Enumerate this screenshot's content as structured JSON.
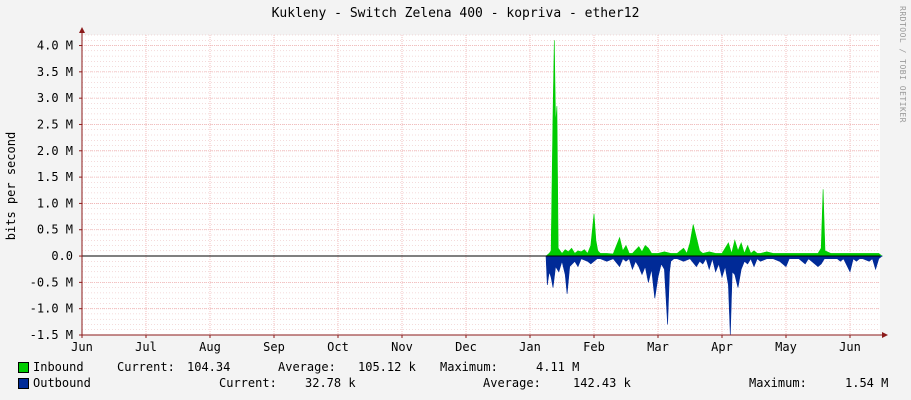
{
  "title": "Kukleny - Switch Zelena 400 - kopriva - ether12",
  "watermark": "RRDTOOL / TOBI OETIKER",
  "colors": {
    "inbound": "#00cc00",
    "outbound": "#002a97",
    "grid_minor": "#e8b8b8",
    "grid_major": "#f0b0b0",
    "axis": "#8b1a1a"
  },
  "chart_data": {
    "type": "area",
    "title": "Kukleny - Switch Zelena 400 - kopriva - ether12",
    "ylabel": "bits per second",
    "xlabel": "",
    "ylim": [
      -1.5,
      4.2
    ],
    "y_unit": "M",
    "y_ticks": [
      {
        "value": 4.0,
        "label": "4.0 M"
      },
      {
        "value": 3.5,
        "label": "3.5 M"
      },
      {
        "value": 3.0,
        "label": "3.0 M"
      },
      {
        "value": 2.5,
        "label": "2.5 M"
      },
      {
        "value": 2.0,
        "label": "2.0 M"
      },
      {
        "value": 1.5,
        "label": "1.5 M"
      },
      {
        "value": 1.0,
        "label": "1.0 M"
      },
      {
        "value": 0.5,
        "label": "0.5 M"
      },
      {
        "value": 0.0,
        "label": "0.0"
      },
      {
        "value": -0.5,
        "label": "-0.5 M"
      },
      {
        "value": -1.0,
        "label": "-1.0 M"
      },
      {
        "value": -1.5,
        "label": "-1.5 M"
      }
    ],
    "x_ticks": [
      "Jun",
      "Jul",
      "Aug",
      "Sep",
      "Oct",
      "Nov",
      "Dec",
      "Jan",
      "Feb",
      "Mar",
      "Apr",
      "May",
      "Jun"
    ],
    "xlim_months": [
      0,
      12.6
    ],
    "grid": true,
    "series": [
      {
        "name": "Inbound",
        "color": "#00cc00",
        "points": [
          [
            7.25,
            0
          ],
          [
            7.3,
            0.05
          ],
          [
            7.33,
            0.1
          ],
          [
            7.36,
            2.7
          ],
          [
            7.38,
            4.1
          ],
          [
            7.4,
            2.5
          ],
          [
            7.42,
            2.85
          ],
          [
            7.44,
            0.15
          ],
          [
            7.5,
            0.05
          ],
          [
            7.55,
            0.12
          ],
          [
            7.6,
            0.08
          ],
          [
            7.65,
            0.15
          ],
          [
            7.7,
            0.05
          ],
          [
            7.75,
            0.1
          ],
          [
            7.8,
            0.08
          ],
          [
            7.85,
            0.12
          ],
          [
            7.9,
            0.05
          ],
          [
            7.95,
            0.2
          ],
          [
            8.0,
            0.8
          ],
          [
            8.03,
            0.3
          ],
          [
            8.06,
            0.1
          ],
          [
            8.1,
            0.05
          ],
          [
            8.2,
            0.05
          ],
          [
            8.3,
            0.04
          ],
          [
            8.4,
            0.35
          ],
          [
            8.45,
            0.1
          ],
          [
            8.5,
            0.2
          ],
          [
            8.55,
            0.05
          ],
          [
            8.6,
            0.05
          ],
          [
            8.7,
            0.18
          ],
          [
            8.75,
            0.08
          ],
          [
            8.8,
            0.2
          ],
          [
            8.85,
            0.15
          ],
          [
            8.9,
            0.05
          ],
          [
            9.0,
            0.05
          ],
          [
            9.1,
            0.08
          ],
          [
            9.2,
            0.05
          ],
          [
            9.3,
            0.05
          ],
          [
            9.4,
            0.15
          ],
          [
            9.45,
            0.05
          ],
          [
            9.5,
            0.25
          ],
          [
            9.55,
            0.6
          ],
          [
            9.6,
            0.35
          ],
          [
            9.65,
            0.1
          ],
          [
            9.7,
            0.05
          ],
          [
            9.8,
            0.08
          ],
          [
            9.9,
            0.05
          ],
          [
            10.0,
            0.05
          ],
          [
            10.05,
            0.15
          ],
          [
            10.1,
            0.25
          ],
          [
            10.15,
            0.05
          ],
          [
            10.2,
            0.3
          ],
          [
            10.25,
            0.1
          ],
          [
            10.3,
            0.25
          ],
          [
            10.35,
            0.05
          ],
          [
            10.4,
            0.2
          ],
          [
            10.45,
            0.05
          ],
          [
            10.5,
            0.1
          ],
          [
            10.55,
            0.05
          ],
          [
            10.6,
            0.05
          ],
          [
            10.7,
            0.08
          ],
          [
            10.8,
            0.05
          ],
          [
            10.9,
            0.05
          ],
          [
            11.0,
            0.05
          ],
          [
            11.2,
            0.05
          ],
          [
            11.4,
            0.05
          ],
          [
            11.5,
            0.05
          ],
          [
            11.55,
            0.15
          ],
          [
            11.58,
            1.27
          ],
          [
            11.61,
            0.1
          ],
          [
            11.7,
            0.05
          ],
          [
            11.9,
            0.05
          ],
          [
            12.1,
            0.05
          ],
          [
            12.3,
            0.05
          ],
          [
            12.45,
            0.05
          ],
          [
            12.5,
            0.0
          ]
        ]
      },
      {
        "name": "Outbound",
        "color": "#002a97",
        "points": [
          [
            7.25,
            0
          ],
          [
            7.27,
            -0.55
          ],
          [
            7.3,
            -0.3
          ],
          [
            7.33,
            -0.4
          ],
          [
            7.36,
            -0.6
          ],
          [
            7.4,
            -0.2
          ],
          [
            7.45,
            -0.3
          ],
          [
            7.5,
            -0.1
          ],
          [
            7.55,
            -0.35
          ],
          [
            7.58,
            -0.72
          ],
          [
            7.62,
            -0.2
          ],
          [
            7.7,
            -0.1
          ],
          [
            7.75,
            -0.2
          ],
          [
            7.8,
            -0.05
          ],
          [
            7.9,
            -0.1
          ],
          [
            7.95,
            -0.15
          ],
          [
            8.0,
            -0.1
          ],
          [
            8.05,
            -0.05
          ],
          [
            8.1,
            -0.05
          ],
          [
            8.2,
            -0.1
          ],
          [
            8.3,
            -0.05
          ],
          [
            8.4,
            -0.2
          ],
          [
            8.45,
            -0.05
          ],
          [
            8.5,
            -0.1
          ],
          [
            8.55,
            -0.05
          ],
          [
            8.6,
            -0.25
          ],
          [
            8.65,
            -0.1
          ],
          [
            8.7,
            -0.2
          ],
          [
            8.75,
            -0.35
          ],
          [
            8.8,
            -0.2
          ],
          [
            8.85,
            -0.5
          ],
          [
            8.9,
            -0.25
          ],
          [
            8.95,
            -0.8
          ],
          [
            9.0,
            -0.4
          ],
          [
            9.05,
            -0.15
          ],
          [
            9.1,
            -0.25
          ],
          [
            9.15,
            -1.3
          ],
          [
            9.18,
            -0.3
          ],
          [
            9.2,
            -0.1
          ],
          [
            9.25,
            -0.05
          ],
          [
            9.3,
            -0.05
          ],
          [
            9.4,
            -0.1
          ],
          [
            9.5,
            -0.05
          ],
          [
            9.6,
            -0.2
          ],
          [
            9.65,
            -0.1
          ],
          [
            9.7,
            -0.15
          ],
          [
            9.75,
            -0.05
          ],
          [
            9.8,
            -0.25
          ],
          [
            9.85,
            -0.05
          ],
          [
            9.9,
            -0.3
          ],
          [
            9.95,
            -0.15
          ],
          [
            10.0,
            -0.4
          ],
          [
            10.05,
            -0.2
          ],
          [
            10.1,
            -0.55
          ],
          [
            10.13,
            -1.5
          ],
          [
            10.16,
            -0.3
          ],
          [
            10.2,
            -0.35
          ],
          [
            10.25,
            -0.6
          ],
          [
            10.3,
            -0.25
          ],
          [
            10.35,
            -0.1
          ],
          [
            10.4,
            -0.15
          ],
          [
            10.45,
            -0.05
          ],
          [
            10.5,
            -0.2
          ],
          [
            10.55,
            -0.05
          ],
          [
            10.6,
            -0.1
          ],
          [
            10.7,
            -0.05
          ],
          [
            10.8,
            -0.05
          ],
          [
            10.9,
            -0.1
          ],
          [
            11.0,
            -0.2
          ],
          [
            11.05,
            -0.05
          ],
          [
            11.1,
            -0.05
          ],
          [
            11.2,
            -0.05
          ],
          [
            11.3,
            -0.15
          ],
          [
            11.35,
            -0.05
          ],
          [
            11.4,
            -0.1
          ],
          [
            11.5,
            -0.2
          ],
          [
            11.55,
            -0.15
          ],
          [
            11.6,
            -0.05
          ],
          [
            11.7,
            -0.05
          ],
          [
            11.8,
            -0.05
          ],
          [
            11.85,
            -0.1
          ],
          [
            11.9,
            -0.05
          ],
          [
            12.0,
            -0.3
          ],
          [
            12.05,
            -0.05
          ],
          [
            12.1,
            -0.1
          ],
          [
            12.15,
            -0.05
          ],
          [
            12.2,
            -0.05
          ],
          [
            12.3,
            -0.1
          ],
          [
            12.35,
            -0.05
          ],
          [
            12.4,
            -0.25
          ],
          [
            12.45,
            -0.05
          ],
          [
            12.5,
            0.0
          ]
        ]
      }
    ]
  },
  "legend": {
    "inbound": {
      "name": "Inbound",
      "current_label": "Current:",
      "current": "104.34",
      "average_label": "Average:",
      "average": "105.12 k",
      "maximum_label": "Maximum:",
      "maximum": "4.11 M"
    },
    "outbound": {
      "name": "Outbound",
      "current_label": "Current:",
      "current": "32.78 k",
      "average_label": "Average:",
      "average": "142.43 k",
      "maximum_label": "Maximum:",
      "maximum": "1.54 M"
    }
  }
}
